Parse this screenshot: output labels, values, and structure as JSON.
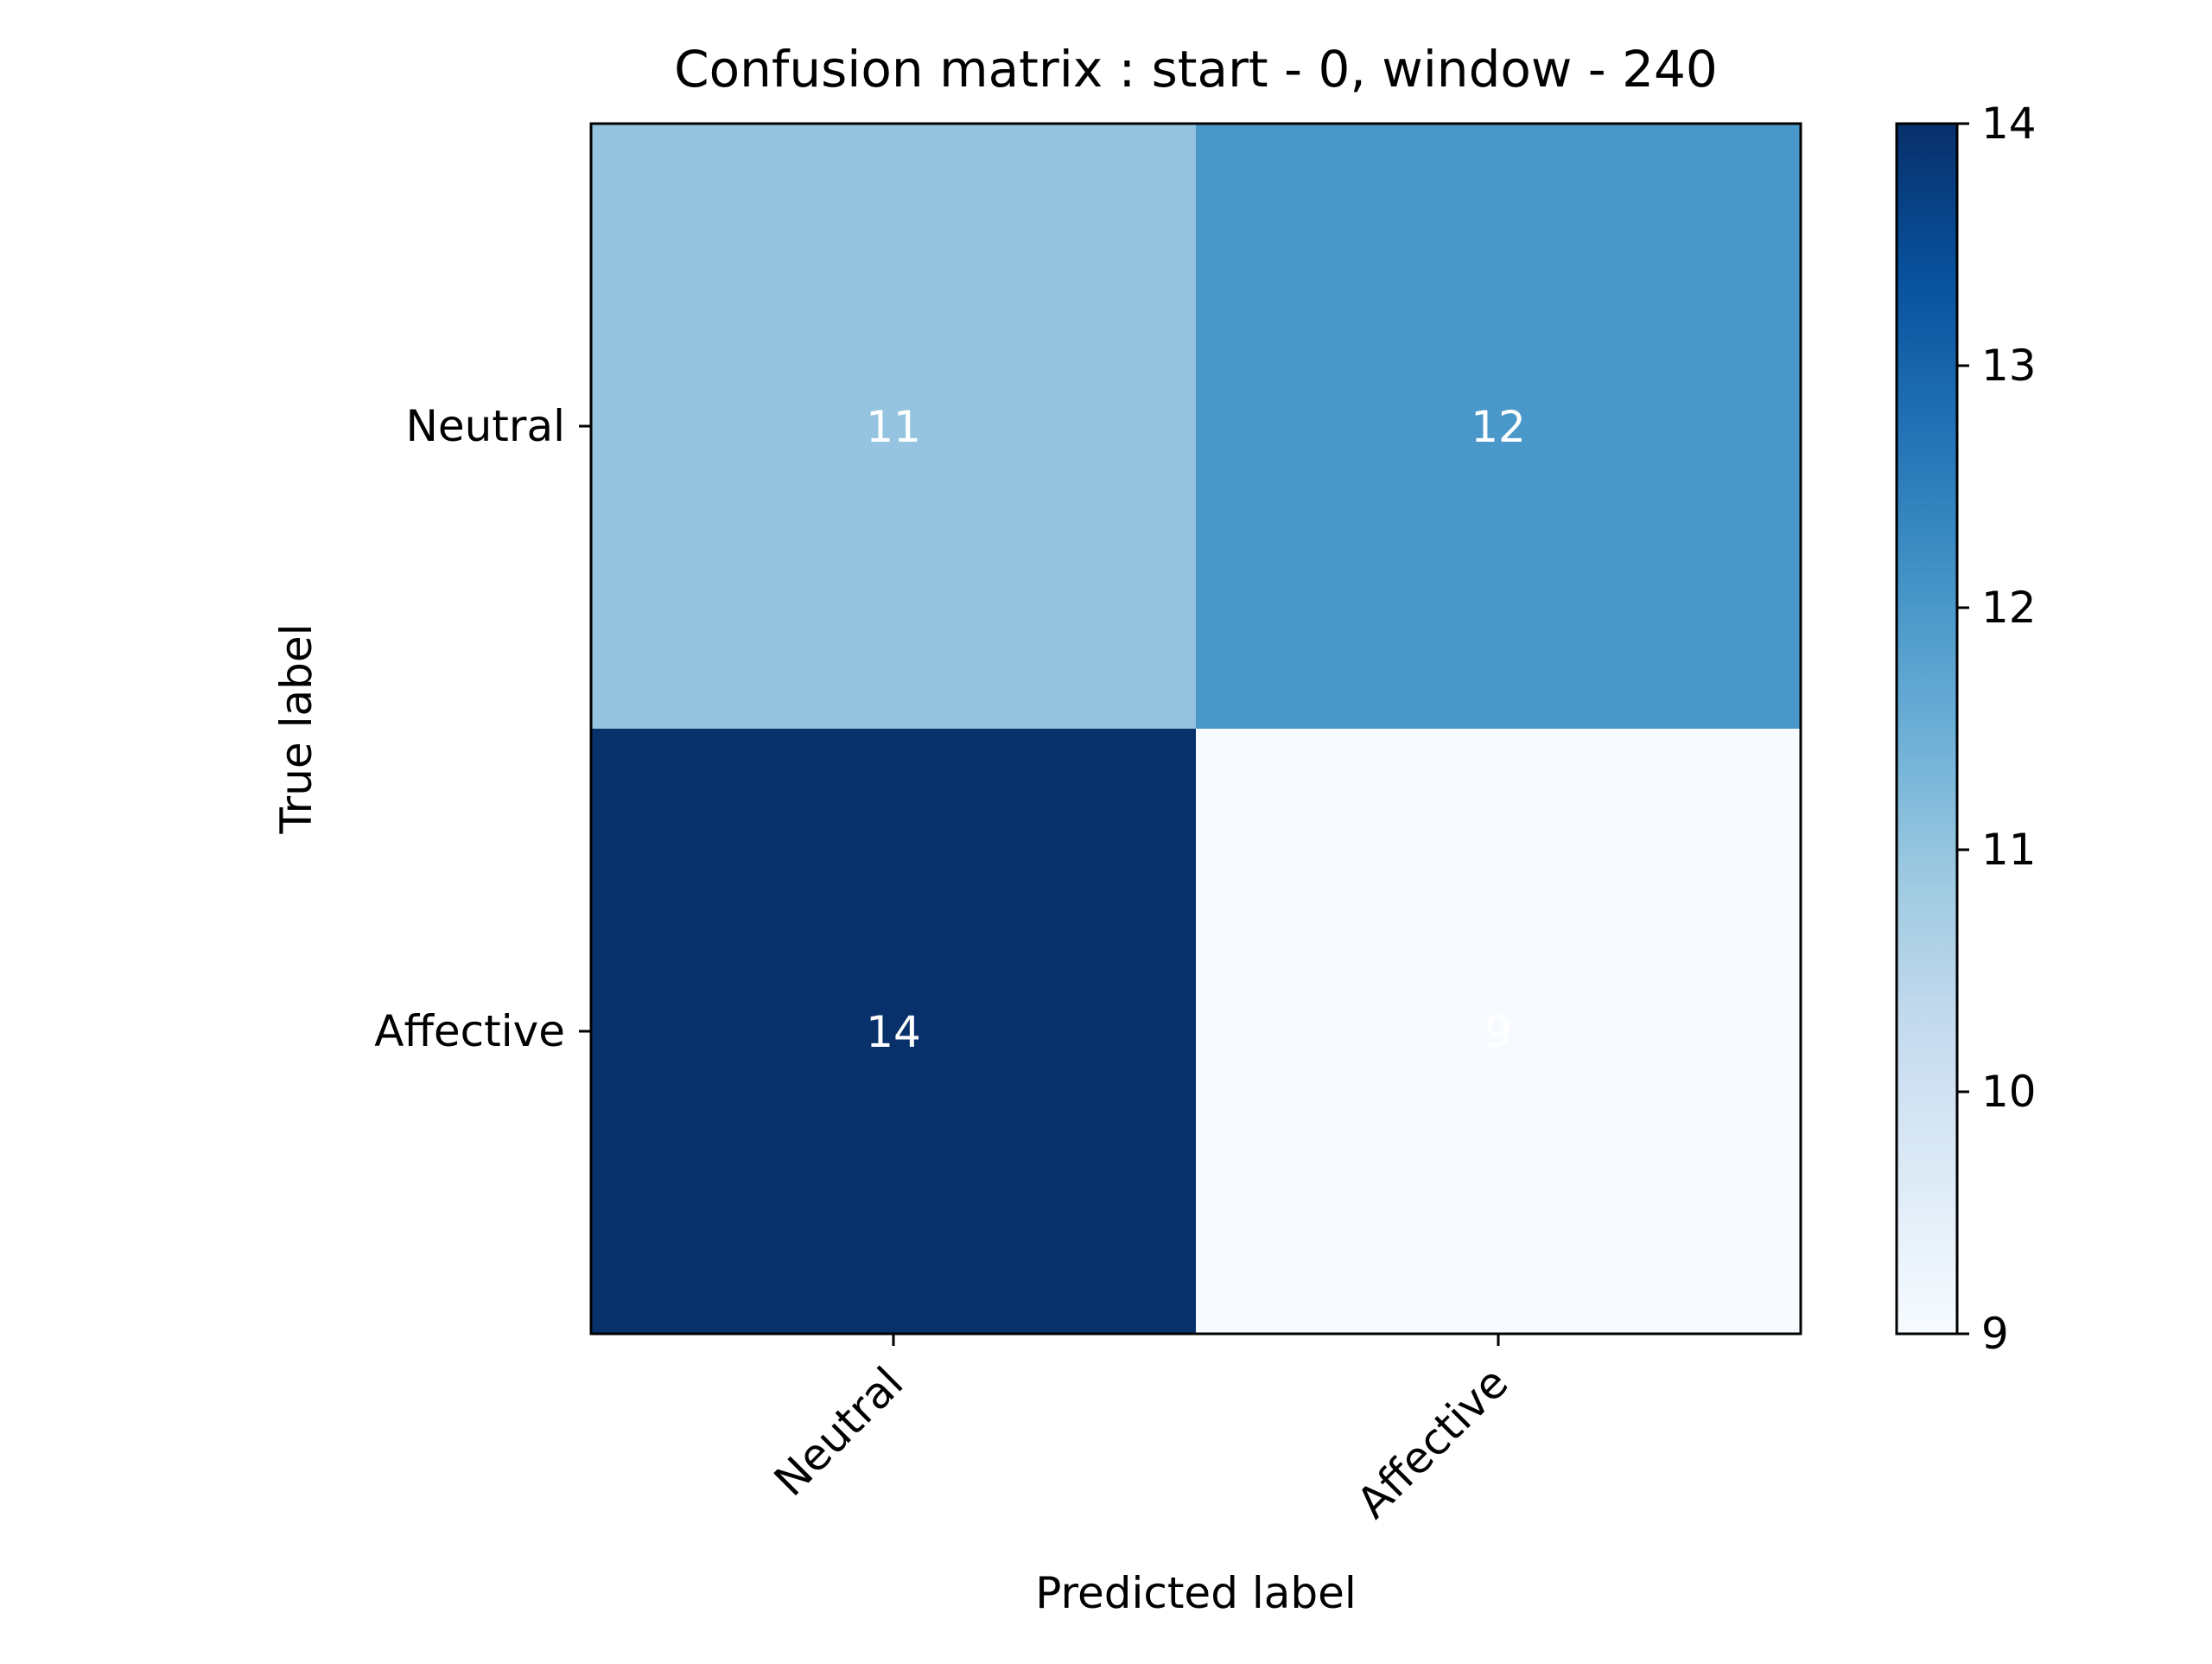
{
  "chart_data": {
    "type": "heatmap",
    "title": "Confusion matrix : start - 0, window - 240",
    "xlabel": "Predicted label",
    "ylabel": "True label",
    "x_categories": [
      "Neutral",
      "Affective"
    ],
    "y_categories": [
      "Neutral",
      "Affective"
    ],
    "values": [
      [
        11,
        12
      ],
      [
        14,
        9
      ]
    ],
    "colormap": "Blues",
    "colorbar": {
      "range": [
        9,
        14
      ],
      "ticks": [
        9,
        10,
        11,
        12,
        13,
        14
      ],
      "tick_labels": [
        "9",
        "10",
        "11",
        "12",
        "13",
        "14"
      ]
    },
    "grid": false,
    "cell_label_color": "#ffffff"
  }
}
